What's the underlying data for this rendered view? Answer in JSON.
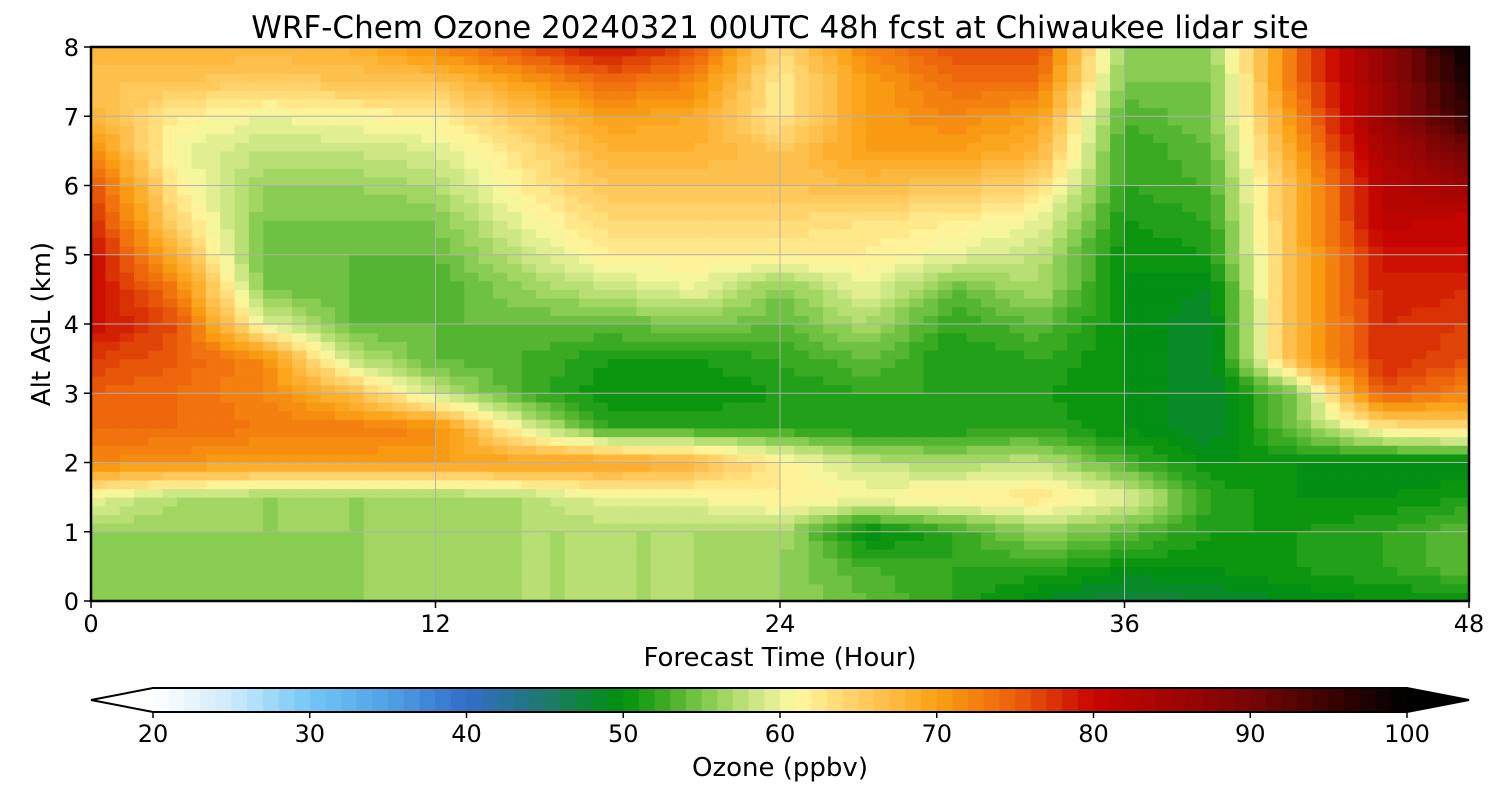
{
  "chart_data": {
    "type": "heatmap",
    "title": "WRF-Chem Ozone  20240321 00UTC 48h fcst at Chiwaukee lidar site",
    "xlabel": "Forecast Time (Hour)",
    "ylabel": "Alt AGL (km)",
    "xlim": [
      0,
      48
    ],
    "ylim": [
      0,
      8
    ],
    "x_ticks": [
      "0",
      "12",
      "24",
      "36",
      "48"
    ],
    "y_ticks": [
      "0",
      "1",
      "2",
      "3",
      "4",
      "5",
      "6",
      "7",
      "8"
    ],
    "grid": true,
    "colorbar": {
      "label": "Ozone  (ppbv)",
      "min": 20,
      "max": 100,
      "extend": "both",
      "ticks": [
        "20",
        "30",
        "40",
        "50",
        "60",
        "70",
        "80",
        "90",
        "100"
      ]
    },
    "grid_data": {
      "x_hours": [
        0,
        3,
        6,
        9,
        12,
        15,
        18,
        21,
        24,
        27,
        30,
        33,
        36,
        39,
        42,
        45,
        48
      ],
      "y_km": [
        0,
        0.5,
        1,
        1.5,
        2,
        2.5,
        3,
        3.5,
        4,
        4.5,
        5,
        5.5,
        6,
        6.5,
        7,
        7.5,
        8
      ],
      "ozone_ppbv": [
        [
          55,
          55,
          55,
          56,
          56,
          57,
          57,
          57,
          56,
          54,
          52,
          49,
          47,
          48,
          49,
          50,
          50
        ],
        [
          55,
          55,
          55,
          56,
          56,
          57,
          57,
          57,
          56,
          53,
          52,
          52,
          50,
          50,
          51,
          52,
          54
        ],
        [
          56,
          56,
          56,
          56,
          56,
          57,
          57,
          57,
          57,
          49,
          52,
          56,
          54,
          51,
          51,
          52,
          54
        ],
        [
          60,
          57,
          56,
          56,
          56,
          57,
          60,
          60,
          62,
          61,
          62,
          63,
          60,
          52,
          50,
          50,
          51
        ],
        [
          72,
          71,
          70,
          70,
          70,
          70,
          70,
          68,
          62,
          58,
          57,
          58,
          53,
          50,
          50,
          49,
          49
        ],
        [
          74,
          74,
          73,
          73,
          72,
          60,
          52,
          52,
          52,
          51,
          51,
          52,
          50,
          48,
          55,
          62,
          64
        ],
        [
          75,
          74,
          72,
          67,
          58,
          53,
          50,
          50,
          51,
          52,
          52,
          51,
          50,
          48,
          55,
          76,
          72
        ],
        [
          77,
          75,
          72,
          58,
          54,
          53,
          51,
          51,
          52,
          54,
          51,
          52,
          50,
          48,
          68,
          78,
          76
        ],
        [
          80,
          76,
          60,
          54,
          54,
          54,
          54,
          55,
          54,
          57,
          52,
          54,
          50,
          48,
          68,
          78,
          77
        ],
        [
          80,
          73,
          55,
          54,
          53,
          56,
          58,
          60,
          55,
          60,
          54,
          57,
          50,
          49,
          68,
          79,
          78
        ],
        [
          80,
          68,
          54,
          54,
          54,
          58,
          62,
          62,
          62,
          62,
          60,
          58,
          50,
          51,
          68,
          79,
          80
        ],
        [
          78,
          64,
          55,
          55,
          55,
          60,
          64,
          64,
          64,
          63,
          62,
          60,
          51,
          52,
          68,
          82,
          80
        ],
        [
          76,
          62,
          56,
          56,
          57,
          62,
          66,
          66,
          66,
          67,
          66,
          64,
          52,
          53,
          68,
          82,
          86
        ],
        [
          72,
          60,
          58,
          58,
          59,
          63,
          68,
          68,
          66,
          70,
          70,
          68,
          52,
          54,
          70,
          84,
          90
        ],
        [
          68,
          62,
          60,
          61,
          62,
          66,
          70,
          69,
          62,
          70,
          72,
          70,
          53,
          55,
          72,
          86,
          96
        ],
        [
          66,
          66,
          65,
          66,
          66,
          70,
          74,
          72,
          62,
          70,
          74,
          74,
          55,
          55,
          74,
          86,
          98
        ],
        [
          68,
          68,
          68,
          68,
          72,
          76,
          80,
          76,
          64,
          72,
          76,
          76,
          56,
          56,
          74,
          86,
          100
        ]
      ]
    }
  }
}
